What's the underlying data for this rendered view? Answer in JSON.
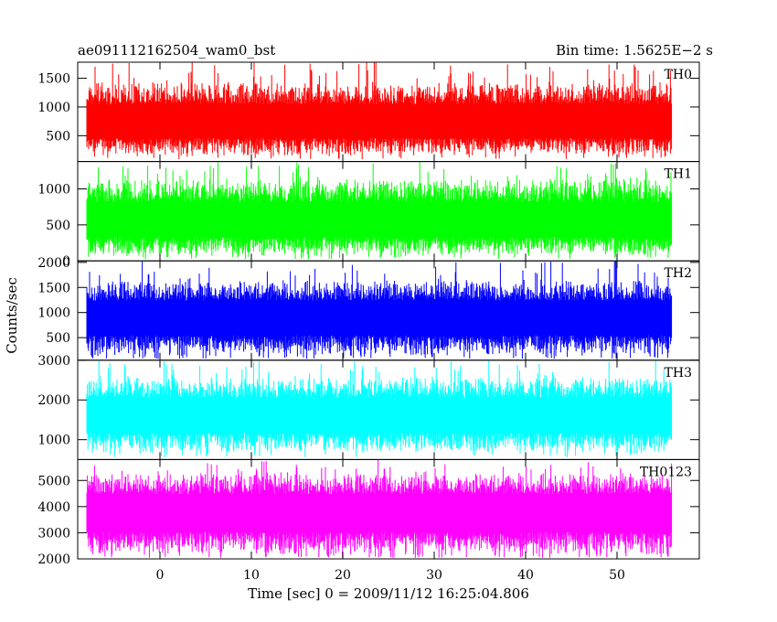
{
  "header": {
    "title": "ae091112162504_wam0_bst",
    "bin_time": "Bin time: 1.5625E−2 s"
  },
  "chart_data": {
    "type": "line",
    "xlabel": "Time [sec] 0 = 2009/11/12 16:25:04.806",
    "ylabel": "Counts/sec",
    "xlim": [
      -9,
      59
    ],
    "x_ticks": [
      0,
      10,
      20,
      30,
      40,
      50
    ],
    "data_x_range": [
      -8,
      56
    ],
    "panels": [
      {
        "name": "TH0",
        "color": "#ff0000",
        "ylim": [
          50,
          1780
        ],
        "y_ticks": [
          500,
          1000,
          1500
        ],
        "band": [
          150,
          1450
        ],
        "mean": 720,
        "spike_max": 1800
      },
      {
        "name": "TH1",
        "color": "#00ff00",
        "ylim": [
          0,
          1380
        ],
        "y_ticks": [
          0,
          500,
          1000
        ],
        "band": [
          60,
          1150
        ],
        "mean": 550,
        "spike_max": 1380
      },
      {
        "name": "TH2",
        "color": "#0000ff",
        "ylim": [
          50,
          2030
        ],
        "y_ticks": [
          500,
          1000,
          1500,
          2000
        ],
        "band": [
          120,
          1650
        ],
        "mean": 900,
        "spike_max": 2030
      },
      {
        "name": "TH3",
        "color": "#00ffff",
        "ylim": [
          500,
          3000
        ],
        "y_ticks": [
          1000,
          2000,
          3000
        ],
        "band": [
          650,
          2600
        ],
        "mean": 1600,
        "spike_max": 3000
      },
      {
        "name": "TH0123",
        "color": "#ff00ff",
        "ylim": [
          2000,
          5800
        ],
        "y_ticks": [
          2000,
          3000,
          4000,
          5000
        ],
        "band": [
          2100,
          5300
        ],
        "mean": 3800,
        "spike_max": 5800
      }
    ]
  }
}
